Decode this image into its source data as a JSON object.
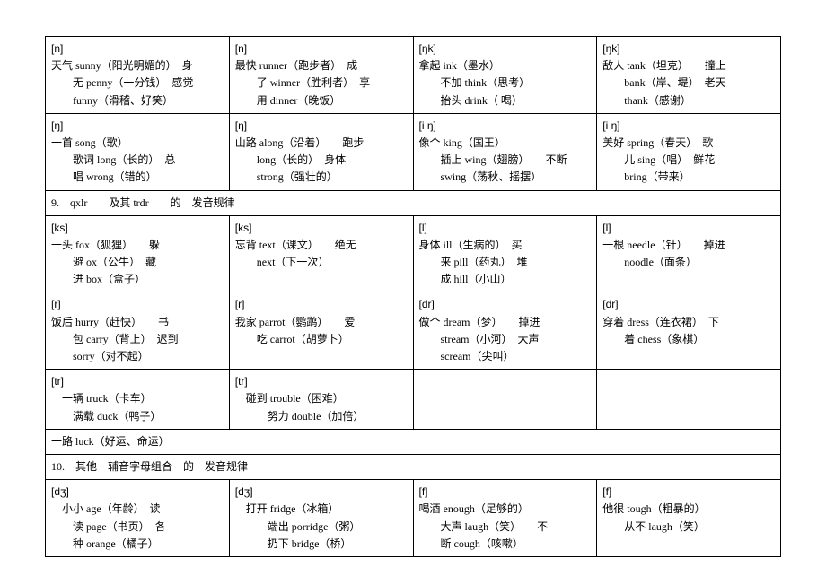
{
  "table": {
    "border_color": "#000000",
    "background_color": "#ffffff",
    "text_color": "#000000",
    "font_size_pt": 9,
    "columns": 4,
    "col_widths_pct": [
      25,
      25,
      25,
      25
    ]
  },
  "rows": [
    {
      "type": "cells",
      "cells": [
        {
          "ipa": "[n]",
          "l1": "天气 sunny（阳光明媚的）　身",
          "l2": "无 penny（一分钱）　感觉",
          "l3": "funny（滑稽、好笑）"
        },
        {
          "ipa": "[n]",
          "l1": "最快 runner（跑步者）　成",
          "l2": "了 winner（胜利者）　享",
          "l3": "用 dinner（晚饭）"
        },
        {
          "ipa": "[ŋk]",
          "l1": "拿起 ink（墨水）",
          "l2": "不加 think（思考）",
          "l3": "抬头 drink（ 喝）"
        },
        {
          "ipa": "[ŋk]",
          "l1": "敌人 tank（坦克）　　撞上",
          "l2": "bank（岸、堤）　老天",
          "l3": "thank（感谢）"
        }
      ]
    },
    {
      "type": "cells",
      "cells": [
        {
          "ipa": "[ŋ]",
          "l1": "一首 song（歌）",
          "l2": "歌词 long（长的）　总",
          "l3": "唱 wrong（错的）"
        },
        {
          "ipa": "[ŋ]",
          "l1": "山路 along（沿着）　　跑步",
          "l2": "long（长的）　身体",
          "l3": "strong（强壮的）"
        },
        {
          "ipa": "[i ŋ]",
          "l1": "像个 king（国王）",
          "l2": "插上 wing（翅膀）　　不断",
          "l3": "swing（荡秋、摇摆）"
        },
        {
          "ipa": "[i ŋ]",
          "l1": "美好 spring（春天）　歌",
          "l2": "儿 sing（唱）　鲜花",
          "l3": "bring（带来）"
        }
      ]
    },
    {
      "type": "full",
      "text": "9.　qxlr　　及其 trdr　　的　发音规律"
    },
    {
      "type": "cells",
      "cells": [
        {
          "ipa": "[ks]",
          "l1": "一头 fox（狐狸）　　躲",
          "l2": "避 ox（公牛）　藏",
          "l3": "进 box（盒子）"
        },
        {
          "ipa": "[ks]",
          "l1": "忘背 text（课文）　　绝无",
          "l2": "next（下一次）",
          "l3": ""
        },
        {
          "ipa": "[l]",
          "l1": "身体 ill（生病的）　买",
          "l2": "来 pill（药丸）　堆",
          "l3": "成 hill（小山）"
        },
        {
          "ipa": "[l]",
          "l1": "一根 needle（针）　　掉进",
          "l2": "noodle（面条）",
          "l3": ""
        }
      ]
    },
    {
      "type": "cells",
      "cells": [
        {
          "ipa": "[r]",
          "l1": "饭后 hurry（赶快）　　书",
          "l2": "包 carry（背上）　迟到",
          "l3": "sorry（对不起）"
        },
        {
          "ipa": "[r]",
          "l1": "我家 parrot（鹦鹉）　　爱",
          "l2": "吃 carrot（胡萝卜）",
          "l3": ""
        },
        {
          "ipa": "[dr]",
          "l1": "做个 dream（梦）　　掉进",
          "l2": "stream（小河）　大声",
          "l3": "scream（尖叫）"
        },
        {
          "ipa": "[dr]",
          "l1": "穿着 dress（连衣裙）　下",
          "l2": "着 chess（象棋）",
          "l3": ""
        }
      ]
    },
    {
      "type": "cells",
      "cells": [
        {
          "ipa": "[tr]",
          "l1": "　一辆 truck（卡车）",
          "l2": "满载 duck（鸭子）",
          "l3": ""
        },
        {
          "ipa": "[tr]",
          "l1": "　碰到 trouble（困难）",
          "l2": "　努力 double（加倍）",
          "l3": ""
        },
        {
          "ipa": "",
          "l1": "",
          "l2": "",
          "l3": ""
        },
        {
          "ipa": "",
          "l1": "",
          "l2": "",
          "l3": ""
        }
      ]
    },
    {
      "type": "full",
      "text": "一路 luck（好运、命运）"
    },
    {
      "type": "full",
      "text": "10.　其他　辅音字母组合　的　发音规律"
    },
    {
      "type": "cells",
      "cells": [
        {
          "ipa": "[dʒ]",
          "l1": "　小小 age（年龄）　读",
          "l2": "读 page（书页）　各",
          "l3": "种 orange（橘子）"
        },
        {
          "ipa": "[dʒ]",
          "l1": "　打开 fridge（冰箱）",
          "l2": "　端出 porridge（粥）",
          "l3": "　扔下 bridge（桥）"
        },
        {
          "ipa": "[f]",
          "l1": "喝酒 enough（足够的）",
          "l2": "大声 laugh（笑）　　不",
          "l3": "断 cough（咳嗽）"
        },
        {
          "ipa": "[f]",
          "l1": "他很 tough（粗暴的）",
          "l2": "从不 laugh（笑）",
          "l3": ""
        }
      ]
    }
  ]
}
